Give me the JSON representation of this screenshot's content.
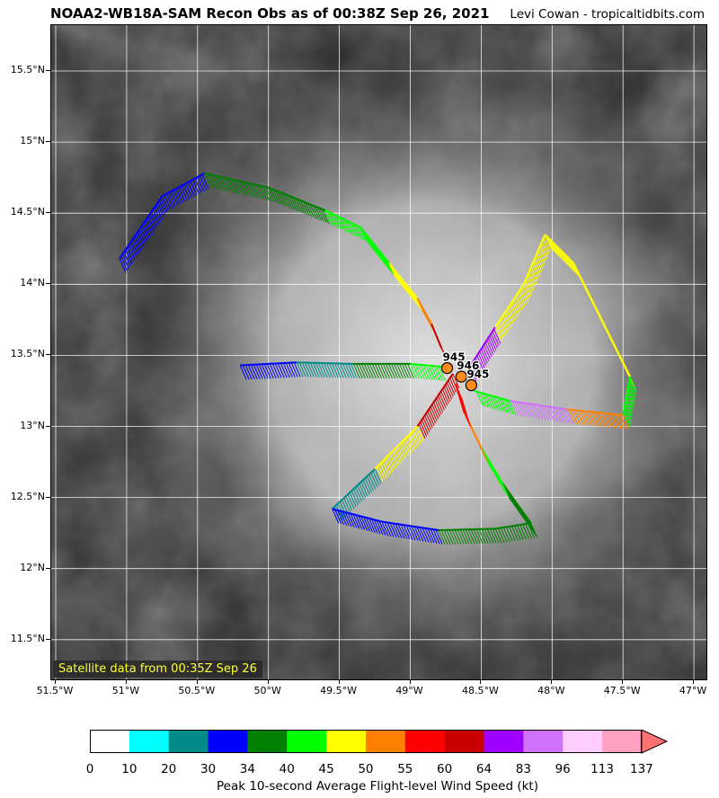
{
  "header": {
    "title": "NOAA2-WB18A-SAM Recon Obs as of 00:38Z Sep 26, 2021",
    "credit": "Levi Cowan - tropicaltidbits.com"
  },
  "map": {
    "satellite_label": "Satellite data from 00:35Z Sep 26",
    "lat_ticks": [
      "15.5°N",
      "15°N",
      "14.5°N",
      "14°N",
      "13.5°N",
      "13°N",
      "12.5°N",
      "12°N",
      "11.5°N"
    ],
    "lon_ticks": [
      "51.5°W",
      "51°W",
      "50.5°W",
      "50°W",
      "49.5°W",
      "49°W",
      "48.5°W",
      "48°W",
      "47.5°W",
      "47°W"
    ],
    "pressure_labels": [
      {
        "text": "945",
        "lon": -48.74,
        "lat": 13.41
      },
      {
        "text": "946",
        "lon": -48.64,
        "lat": 13.35
      },
      {
        "text": "945",
        "lon": -48.57,
        "lat": 13.29
      }
    ],
    "colors": {
      "grid": "#ffffff",
      "pressure_marker": "#ff8c1a",
      "sat_label_text": "#ffff33"
    }
  },
  "colorbar": {
    "title": "Peak 10-second Average Flight-level Wind Speed (kt)",
    "labels": [
      "0",
      "10",
      "20",
      "30",
      "34",
      "40",
      "45",
      "50",
      "55",
      "60",
      "64",
      "83",
      "96",
      "113",
      "137"
    ],
    "colors": [
      "#ffffff",
      "#00ffff",
      "#008b8b",
      "#0000ff",
      "#008000",
      "#00ff00",
      "#ffff00",
      "#ff8000",
      "#ff0000",
      "#c80000",
      "#a000ff",
      "#d070ff",
      "#ffccff",
      "#ffa0c0"
    ]
  }
}
